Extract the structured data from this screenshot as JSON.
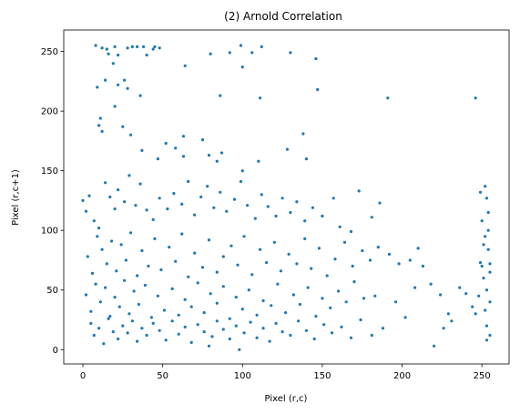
{
  "chart_data": {
    "type": "scatter",
    "title": "(2) Arnold Correlation",
    "xlabel": "Pixel (r,c)",
    "ylabel": "Pixel (r,c+1)",
    "xlim": [
      -12,
      267
    ],
    "ylim": [
      -12,
      268
    ],
    "xticks": [
      0,
      50,
      100,
      150,
      200,
      250
    ],
    "yticks": [
      0,
      50,
      100,
      150,
      200,
      250
    ],
    "grid": false,
    "marker_color": "#1f77b4",
    "points": [
      [
        8,
        255
      ],
      [
        12,
        253
      ],
      [
        15,
        252
      ],
      [
        16,
        248
      ],
      [
        20,
        254
      ],
      [
        28,
        253
      ],
      [
        31,
        254
      ],
      [
        34,
        254
      ],
      [
        38,
        254
      ],
      [
        44,
        252
      ],
      [
        45,
        254
      ],
      [
        48,
        253
      ],
      [
        19,
        240
      ],
      [
        22,
        247
      ],
      [
        40,
        247
      ],
      [
        64,
        238
      ],
      [
        80,
        248
      ],
      [
        92,
        249
      ],
      [
        99,
        255
      ],
      [
        112,
        254
      ],
      [
        106,
        249
      ],
      [
        130,
        249
      ],
      [
        146,
        244
      ],
      [
        100,
        237
      ],
      [
        147,
        218
      ],
      [
        111,
        211
      ],
      [
        191,
        211
      ],
      [
        246,
        211
      ],
      [
        9,
        220
      ],
      [
        14,
        226
      ],
      [
        22,
        222
      ],
      [
        26,
        226
      ],
      [
        28,
        219
      ],
      [
        36,
        213
      ],
      [
        20,
        204
      ],
      [
        86,
        213
      ],
      [
        11,
        194
      ],
      [
        10,
        188
      ],
      [
        12,
        183
      ],
      [
        25,
        187
      ],
      [
        30,
        180
      ],
      [
        63,
        179
      ],
      [
        58,
        169
      ],
      [
        75,
        176
      ],
      [
        79,
        163
      ],
      [
        84,
        158
      ],
      [
        87,
        165
      ],
      [
        138,
        181
      ],
      [
        140,
        160
      ],
      [
        128,
        168
      ],
      [
        110,
        158
      ],
      [
        100,
        150
      ],
      [
        63,
        162
      ],
      [
        47,
        160
      ],
      [
        52,
        173
      ],
      [
        37,
        167
      ],
      [
        0,
        125
      ],
      [
        2,
        116
      ],
      [
        4,
        129
      ],
      [
        7,
        108
      ],
      [
        10,
        102
      ],
      [
        14,
        140
      ],
      [
        17,
        128
      ],
      [
        20,
        118
      ],
      [
        22,
        134
      ],
      [
        26,
        124
      ],
      [
        29,
        146
      ],
      [
        33,
        121
      ],
      [
        36,
        139
      ],
      [
        40,
        117
      ],
      [
        44,
        109
      ],
      [
        48,
        127
      ],
      [
        53,
        118
      ],
      [
        57,
        131
      ],
      [
        62,
        122
      ],
      [
        66,
        141
      ],
      [
        70,
        113
      ],
      [
        74,
        128
      ],
      [
        78,
        137
      ],
      [
        82,
        119
      ],
      [
        86,
        132
      ],
      [
        90,
        116
      ],
      [
        95,
        126
      ],
      [
        99,
        141
      ],
      [
        103,
        121
      ],
      [
        108,
        110
      ],
      [
        112,
        130
      ],
      [
        116,
        120
      ],
      [
        121,
        112
      ],
      [
        125,
        127
      ],
      [
        130,
        115
      ],
      [
        134,
        124
      ],
      [
        139,
        108
      ],
      [
        144,
        119
      ],
      [
        150,
        112
      ],
      [
        157,
        127
      ],
      [
        161,
        103
      ],
      [
        168,
        99
      ],
      [
        173,
        133
      ],
      [
        181,
        111
      ],
      [
        186,
        123
      ],
      [
        3,
        78
      ],
      [
        6,
        64
      ],
      [
        9,
        95
      ],
      [
        12,
        84
      ],
      [
        15,
        72
      ],
      [
        18,
        91
      ],
      [
        21,
        66
      ],
      [
        24,
        88
      ],
      [
        27,
        75
      ],
      [
        30,
        98
      ],
      [
        34,
        62
      ],
      [
        37,
        83
      ],
      [
        41,
        70
      ],
      [
        45,
        93
      ],
      [
        49,
        67
      ],
      [
        54,
        86
      ],
      [
        58,
        74
      ],
      [
        62,
        97
      ],
      [
        66,
        61
      ],
      [
        70,
        81
      ],
      [
        75,
        69
      ],
      [
        79,
        92
      ],
      [
        84,
        65
      ],
      [
        88,
        78
      ],
      [
        93,
        87
      ],
      [
        97,
        71
      ],
      [
        101,
        95
      ],
      [
        106,
        63
      ],
      [
        111,
        84
      ],
      [
        115,
        73
      ],
      [
        120,
        90
      ],
      [
        124,
        66
      ],
      [
        129,
        80
      ],
      [
        134,
        72
      ],
      [
        139,
        93
      ],
      [
        143,
        68
      ],
      [
        148,
        85
      ],
      [
        153,
        62
      ],
      [
        158,
        76
      ],
      [
        164,
        90
      ],
      [
        169,
        70
      ],
      [
        175,
        83
      ],
      [
        180,
        75
      ],
      [
        185,
        86
      ],
      [
        192,
        80
      ],
      [
        198,
        72
      ],
      [
        205,
        75
      ],
      [
        210,
        85
      ],
      [
        213,
        70
      ],
      [
        2,
        46
      ],
      [
        5,
        32
      ],
      [
        8,
        55
      ],
      [
        11,
        40
      ],
      [
        14,
        52
      ],
      [
        17,
        28
      ],
      [
        20,
        44
      ],
      [
        23,
        36
      ],
      [
        26,
        58
      ],
      [
        29,
        30
      ],
      [
        32,
        49
      ],
      [
        35,
        38
      ],
      [
        39,
        54
      ],
      [
        43,
        27
      ],
      [
        47,
        45
      ],
      [
        51,
        33
      ],
      [
        56,
        51
      ],
      [
        60,
        29
      ],
      [
        64,
        42
      ],
      [
        68,
        36
      ],
      [
        72,
        56
      ],
      [
        76,
        31
      ],
      [
        80,
        47
      ],
      [
        84,
        39
      ],
      [
        88,
        53
      ],
      [
        92,
        26
      ],
      [
        96,
        44
      ],
      [
        100,
        34
      ],
      [
        104,
        50
      ],
      [
        109,
        29
      ],
      [
        113,
        41
      ],
      [
        118,
        37
      ],
      [
        122,
        55
      ],
      [
        127,
        31
      ],
      [
        132,
        46
      ],
      [
        136,
        38
      ],
      [
        141,
        52
      ],
      [
        146,
        28
      ],
      [
        150,
        43
      ],
      [
        155,
        35
      ],
      [
        160,
        49
      ],
      [
        165,
        40
      ],
      [
        170,
        57
      ],
      [
        176,
        43
      ],
      [
        183,
        45
      ],
      [
        196,
        40
      ],
      [
        208,
        52
      ],
      [
        218,
        55
      ],
      [
        224,
        46
      ],
      [
        229,
        30
      ],
      [
        236,
        52
      ],
      [
        240,
        47
      ],
      [
        244,
        36
      ],
      [
        5,
        22
      ],
      [
        7,
        12
      ],
      [
        10,
        18
      ],
      [
        13,
        5
      ],
      [
        16,
        26
      ],
      [
        19,
        15
      ],
      [
        22,
        9
      ],
      [
        25,
        20
      ],
      [
        28,
        14
      ],
      [
        31,
        24
      ],
      [
        34,
        7
      ],
      [
        37,
        18
      ],
      [
        40,
        12
      ],
      [
        44,
        22
      ],
      [
        48,
        16
      ],
      [
        52,
        8
      ],
      [
        56,
        24
      ],
      [
        60,
        13
      ],
      [
        64,
        19
      ],
      [
        68,
        6
      ],
      [
        72,
        21
      ],
      [
        76,
        15
      ],
      [
        79,
        3
      ],
      [
        81,
        11
      ],
      [
        84,
        24
      ],
      [
        88,
        17
      ],
      [
        92,
        9
      ],
      [
        96,
        20
      ],
      [
        98,
        0
      ],
      [
        101,
        14
      ],
      [
        105,
        23
      ],
      [
        109,
        10
      ],
      [
        113,
        18
      ],
      [
        117,
        7
      ],
      [
        121,
        22
      ],
      [
        125,
        15
      ],
      [
        130,
        12
      ],
      [
        135,
        24
      ],
      [
        140,
        16
      ],
      [
        145,
        9
      ],
      [
        151,
        21
      ],
      [
        156,
        14
      ],
      [
        162,
        19
      ],
      [
        168,
        10
      ],
      [
        174,
        25
      ],
      [
        181,
        12
      ],
      [
        188,
        18
      ],
      [
        202,
        27
      ],
      [
        220,
        3
      ],
      [
        226,
        18
      ],
      [
        231,
        24
      ],
      [
        246,
        30
      ],
      [
        248,
        45
      ],
      [
        249,
        73
      ],
      [
        250,
        108
      ],
      [
        251,
        60
      ],
      [
        252,
        95
      ],
      [
        252,
        137
      ],
      [
        253,
        50
      ],
      [
        253,
        20
      ],
      [
        254,
        84
      ],
      [
        254,
        115
      ],
      [
        255,
        40
      ],
      [
        255,
        72
      ],
      [
        255,
        12
      ],
      [
        253,
        127
      ],
      [
        251,
        88
      ],
      [
        252,
        33
      ],
      [
        254,
        100
      ],
      [
        255,
        65
      ],
      [
        249,
        132
      ],
      [
        250,
        70
      ],
      [
        253,
        8
      ]
    ]
  }
}
